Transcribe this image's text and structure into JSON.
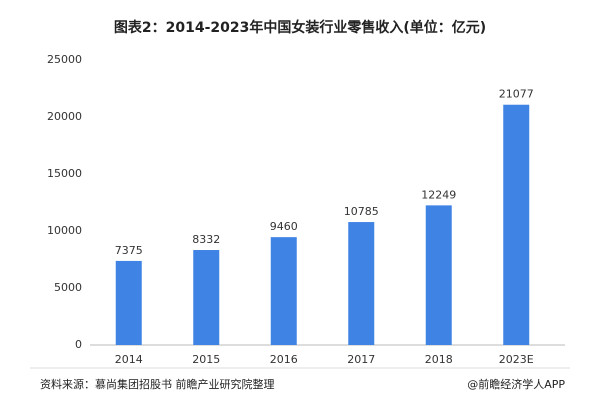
{
  "chart_data": {
    "type": "bar",
    "title": "图表2：2014-2023年中国女装行业零售收入(单位：亿元)",
    "categories": [
      "2014",
      "2015",
      "2016",
      "2017",
      "2018",
      "2023E"
    ],
    "values": [
      7375,
      8332,
      9460,
      10785,
      12249,
      21077
    ],
    "color": "#3f83e4",
    "ylim": [
      0,
      25000
    ],
    "yticks": [
      0,
      5000,
      10000,
      15000,
      20000,
      25000
    ],
    "grid": false
  },
  "footer": {
    "source": "资料来源：慕尚集团招股书 前瞻产业研究院整理",
    "credit": "@前瞻经济学人APP"
  }
}
